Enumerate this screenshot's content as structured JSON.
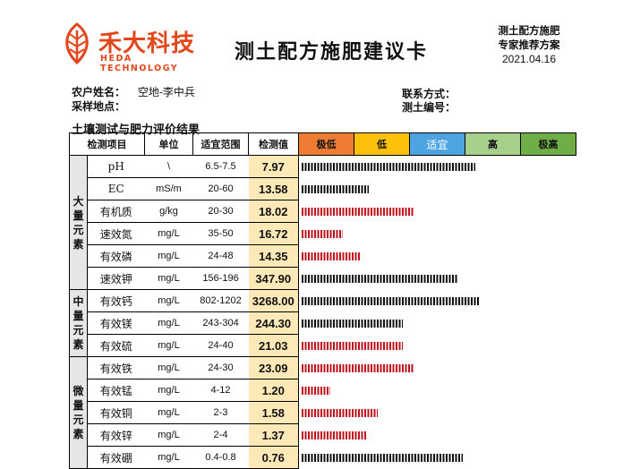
{
  "header": {
    "brand_cn": "禾大科技",
    "brand_en": "HEDA TECHNOLOGY",
    "title": "测土配方施肥建议卡",
    "corner_line1": "测土配方施肥",
    "corner_line2": "专家推荐方案",
    "date": "2021.04.16",
    "brand_color": "#e2471c"
  },
  "info": {
    "farmer_label": "农户姓名：",
    "farmer_value": "空地-李中兵",
    "location_label": "采样地点：",
    "contact_label": "联系方式：",
    "soil_id_label": "测土编号："
  },
  "section_title": "土壤测试与肥力评价结果",
  "table": {
    "headers": {
      "item": "检测项目",
      "unit": "单位",
      "range": "适宜范围",
      "value": "检测值"
    },
    "levels": [
      {
        "label": "极低",
        "color": "#ee7d33"
      },
      {
        "label": "低",
        "color": "#fec10b"
      },
      {
        "label": "适宜",
        "color": "#4ea4e0"
      },
      {
        "label": "高",
        "color": "#a8d08d"
      },
      {
        "label": "极高",
        "color": "#6fad47"
      }
    ],
    "groups": [
      {
        "label": [
          "大",
          "量",
          "元",
          "素"
        ],
        "rows": [
          {
            "name": "pH",
            "unit": "\\",
            "range": "6.5-7.5",
            "value": "7.97",
            "bar": 0.98,
            "color": "#111111"
          },
          {
            "name": "EC",
            "unit": "mS/m",
            "range": "20-60",
            "value": "13.58",
            "bar": 0.38,
            "color": "#111111"
          },
          {
            "name": "有机质",
            "unit": "g/kg",
            "range": "20-30",
            "value": "18.02",
            "bar": 0.63,
            "color": "#c0111b"
          },
          {
            "name": "速效氮",
            "unit": "mg/L",
            "range": "35-50",
            "value": "16.72",
            "bar": 0.23,
            "color": "#c0111b"
          },
          {
            "name": "有效磷",
            "unit": "mg/L",
            "range": "24-48",
            "value": "14.35",
            "bar": 0.33,
            "color": "#c0111b"
          },
          {
            "name": "速效钾",
            "unit": "mg/L",
            "range": "156-196",
            "value": "347.90",
            "bar": 0.88,
            "color": "#111111"
          }
        ]
      },
      {
        "label": [
          "中",
          "量",
          "元",
          "素"
        ],
        "rows": [
          {
            "name": "有效钙",
            "unit": "mg/L",
            "range": "802-1202",
            "value": "3268.00",
            "bar": 1.0,
            "color": "#111111"
          },
          {
            "name": "有效镁",
            "unit": "mg/L",
            "range": "243-304",
            "value": "244.30",
            "bar": 0.57,
            "color": "#111111"
          },
          {
            "name": "有效硫",
            "unit": "mg/L",
            "range": "24-40",
            "value": "21.03",
            "bar": 0.57,
            "color": "#c0111b"
          }
        ]
      },
      {
        "label": [
          "微",
          "量",
          "元",
          "素"
        ],
        "rows": [
          {
            "name": "有效铁",
            "unit": "mg/L",
            "range": "24-30",
            "value": "23.09",
            "bar": 0.63,
            "color": "#c0111b"
          },
          {
            "name": "有效锰",
            "unit": "mg/L",
            "range": "4-12",
            "value": "1.20",
            "bar": 0.16,
            "color": "#c0111b"
          },
          {
            "name": "有效铜",
            "unit": "mg/L",
            "range": "2-3",
            "value": "1.58",
            "bar": 0.43,
            "color": "#c0111b"
          },
          {
            "name": "有效锌",
            "unit": "mg/L",
            "range": "2-4",
            "value": "1.37",
            "bar": 0.37,
            "color": "#c0111b"
          },
          {
            "name": "有效硼",
            "unit": "mg/L",
            "range": "0.4-0.8",
            "value": "0.76",
            "bar": 0.91,
            "color": "#111111"
          }
        ]
      }
    ]
  }
}
